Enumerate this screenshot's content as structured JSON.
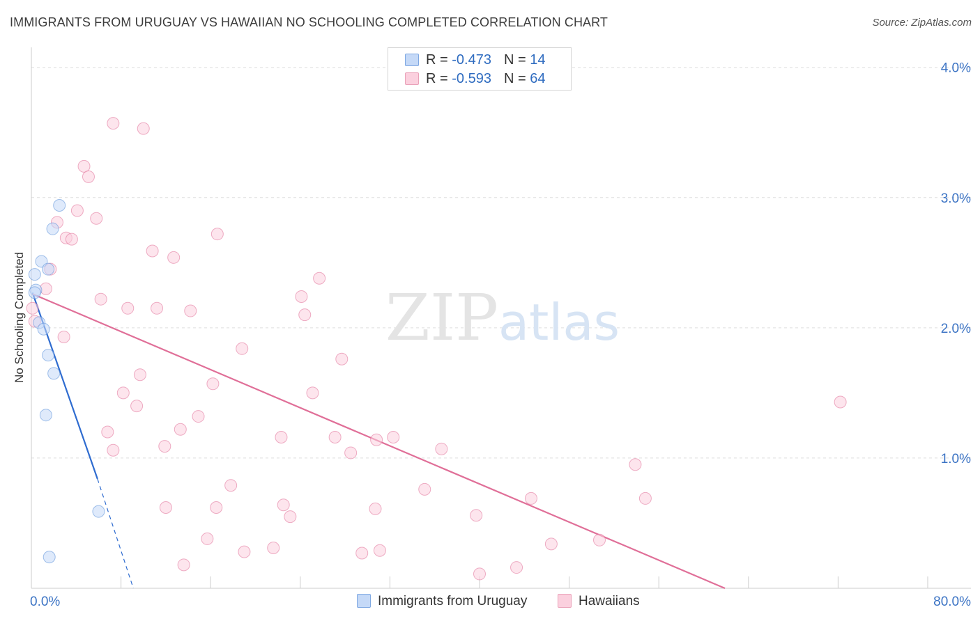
{
  "chart_data": {
    "type": "scatter",
    "title": "IMMIGRANTS FROM URUGUAY VS HAWAIIAN NO SCHOOLING COMPLETED CORRELATION CHART",
    "source": "Source: ZipAtlas.com",
    "ylabel": "No Schooling Completed",
    "xlabel": "",
    "xlim": [
      0,
      80
    ],
    "ylim": [
      0,
      4.0
    ],
    "x_tick_labels": [
      "0.0%",
      "80.0%"
    ],
    "y_tick_labels": [
      "4.0%",
      "3.0%",
      "2.0%",
      "1.0%"
    ],
    "y_tick_values": [
      4.0,
      3.0,
      2.0,
      1.0
    ],
    "grid": true,
    "watermark": {
      "zip": "ZIP",
      "atlas": "atlas"
    },
    "legend": {
      "series1": {
        "r_label": "R =",
        "r_value": "-0.473",
        "n_label": "N =",
        "n_value": "14"
      },
      "series2": {
        "r_label": "R =",
        "r_value": "-0.593",
        "n_label": "N =",
        "n_value": "64"
      }
    },
    "series": [
      {
        "name": "Immigrants from Uruguay",
        "color": "#5a8fd8",
        "fill": "#c5d9f7",
        "trendline": {
          "x": [
            0.1,
            5.9
          ],
          "y": [
            2.27,
            0.84
          ],
          "dashed_extension": {
            "x": [
              5.9,
              9.1
            ],
            "y": [
              0.84,
              0.0
            ]
          }
        },
        "points": [
          [
            2.5,
            2.94
          ],
          [
            1.9,
            2.76
          ],
          [
            0.9,
            2.51
          ],
          [
            1.5,
            2.45
          ],
          [
            0.3,
            2.41
          ],
          [
            0.4,
            2.29
          ],
          [
            0.3,
            2.27
          ],
          [
            0.7,
            2.04
          ],
          [
            1.1,
            1.99
          ],
          [
            1.5,
            1.79
          ],
          [
            2.0,
            1.65
          ],
          [
            1.3,
            1.33
          ],
          [
            6.0,
            0.59
          ],
          [
            1.6,
            0.24
          ]
        ]
      },
      {
        "name": "Hawaiians",
        "color": "#e06f98",
        "fill": "#fbd0de",
        "trendline": {
          "x": [
            0.1,
            61.9
          ],
          "y": [
            2.26,
            0.0
          ]
        },
        "points": [
          [
            7.3,
            3.57
          ],
          [
            10.0,
            3.53
          ],
          [
            4.7,
            3.24
          ],
          [
            5.1,
            3.16
          ],
          [
            4.1,
            2.9
          ],
          [
            5.8,
            2.84
          ],
          [
            2.3,
            2.81
          ],
          [
            16.6,
            2.72
          ],
          [
            3.1,
            2.69
          ],
          [
            3.6,
            2.68
          ],
          [
            10.8,
            2.59
          ],
          [
            12.7,
            2.54
          ],
          [
            1.7,
            2.45
          ],
          [
            25.7,
            2.38
          ],
          [
            1.3,
            2.3
          ],
          [
            24.1,
            2.24
          ],
          [
            6.2,
            2.22
          ],
          [
            8.6,
            2.15
          ],
          [
            11.2,
            2.15
          ],
          [
            14.2,
            2.13
          ],
          [
            24.4,
            2.1
          ],
          [
            2.9,
            1.93
          ],
          [
            18.8,
            1.84
          ],
          [
            27.7,
            1.76
          ],
          [
            9.7,
            1.64
          ],
          [
            16.2,
            1.57
          ],
          [
            8.2,
            1.5
          ],
          [
            25.1,
            1.5
          ],
          [
            9.4,
            1.4
          ],
          [
            72.2,
            1.43
          ],
          [
            14.9,
            1.32
          ],
          [
            6.8,
            1.2
          ],
          [
            13.3,
            1.22
          ],
          [
            22.3,
            1.16
          ],
          [
            27.1,
            1.16
          ],
          [
            30.8,
            1.14
          ],
          [
            32.3,
            1.16
          ],
          [
            7.3,
            1.06
          ],
          [
            11.9,
            1.09
          ],
          [
            28.5,
            1.04
          ],
          [
            36.6,
            1.07
          ],
          [
            53.9,
            0.95
          ],
          [
            17.8,
            0.79
          ],
          [
            35.1,
            0.76
          ],
          [
            44.6,
            0.69
          ],
          [
            54.8,
            0.69
          ],
          [
            12.0,
            0.62
          ],
          [
            16.5,
            0.62
          ],
          [
            22.5,
            0.64
          ],
          [
            30.7,
            0.61
          ],
          [
            23.1,
            0.55
          ],
          [
            39.7,
            0.56
          ],
          [
            15.7,
            0.38
          ],
          [
            46.4,
            0.34
          ],
          [
            50.7,
            0.37
          ],
          [
            19.0,
            0.28
          ],
          [
            21.6,
            0.31
          ],
          [
            29.5,
            0.27
          ],
          [
            31.1,
            0.29
          ],
          [
            13.6,
            0.18
          ],
          [
            43.3,
            0.16
          ],
          [
            40.0,
            0.11
          ],
          [
            0.1,
            2.15
          ],
          [
            0.3,
            2.05
          ]
        ]
      }
    ]
  }
}
